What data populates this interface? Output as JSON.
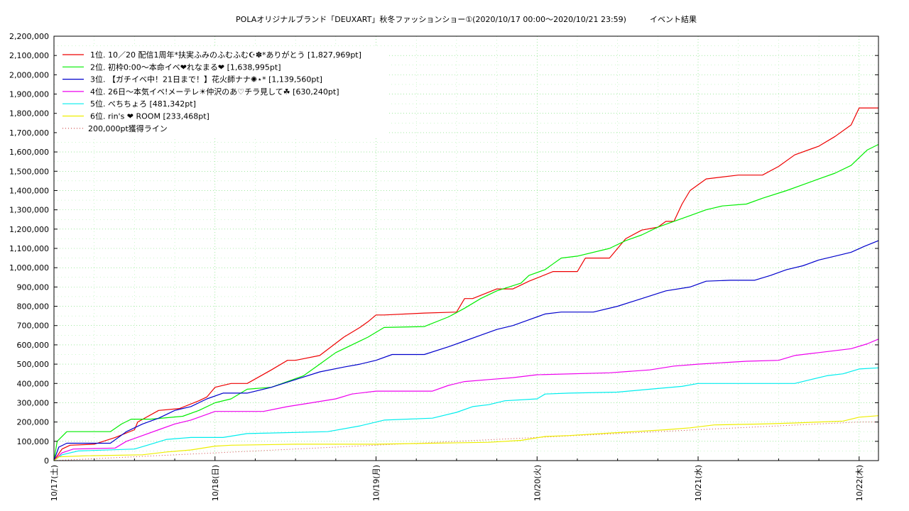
{
  "chart_data": {
    "type": "line",
    "title": "POLAオリジナルブランド「DEUXART」秋冬ファッションショー①(2020/10/17 00:00～2020/10/21 23:59)",
    "title_suffix": "イベント結果",
    "ylim": [
      0,
      2200000
    ],
    "xlim": [
      0,
      5.12
    ],
    "y_ticks": [
      0,
      100000,
      200000,
      300000,
      400000,
      500000,
      600000,
      700000,
      800000,
      900000,
      1000000,
      1100000,
      1200000,
      1300000,
      1400000,
      1500000,
      1600000,
      1700000,
      1800000,
      1900000,
      2000000,
      2100000,
      2200000
    ],
    "y_tick_labels": [
      "0",
      "100,000",
      "200,000",
      "300,000",
      "400,000",
      "500,000",
      "600,000",
      "700,000",
      "800,000",
      "900,000",
      "1,000,000",
      "1,100,000",
      "1,200,000",
      "1,300,000",
      "1,400,000",
      "1,500,000",
      "1,600,000",
      "1,700,000",
      "1,800,000",
      "1,900,000",
      "2,000,000",
      "2,100,000",
      "2,200,000"
    ],
    "x_ticks": [
      0,
      1,
      2,
      3,
      4,
      5
    ],
    "x_tick_labels": [
      "10/17(土)",
      "10/18(日)",
      "10/19(月)",
      "10/20(火)",
      "10/21(水)",
      "10/22(木)"
    ],
    "grid": true,
    "legend_position": "top-left",
    "series": [
      {
        "name": "1位. 10／20 配信1周年*扶実ふみのふむふむ☪✽*ありがとう [1,827,969pt]",
        "color": "#ee0000",
        "x": [
          0,
          0.05,
          0.1,
          0.25,
          0.38,
          0.5,
          0.52,
          0.65,
          0.78,
          0.9,
          0.95,
          1.0,
          1.1,
          1.2,
          1.35,
          1.45,
          1.5,
          1.65,
          1.8,
          1.9,
          1.95,
          2.0,
          2.05,
          2.3,
          2.5,
          2.55,
          2.6,
          2.75,
          2.85,
          2.95,
          3.1,
          3.2,
          3.25,
          3.3,
          3.45,
          3.55,
          3.65,
          3.75,
          3.8,
          3.85,
          3.9,
          3.95,
          4.05,
          4.25,
          4.4,
          4.5,
          4.6,
          4.75,
          4.85,
          4.95,
          5.0,
          5.12
        ],
        "y": [
          0,
          60000,
          80000,
          85000,
          120000,
          160000,
          200000,
          260000,
          270000,
          310000,
          330000,
          380000,
          400000,
          400000,
          470000,
          520000,
          520000,
          545000,
          640000,
          690000,
          720000,
          755000,
          755000,
          765000,
          770000,
          840000,
          840000,
          890000,
          890000,
          930000,
          980000,
          980000,
          980000,
          1050000,
          1050000,
          1150000,
          1195000,
          1210000,
          1240000,
          1240000,
          1330000,
          1400000,
          1460000,
          1480000,
          1480000,
          1525000,
          1585000,
          1630000,
          1680000,
          1740000,
          1828000,
          1828000
        ]
      },
      {
        "name": "2位. 初枠0:00～本命イベ❤れなまる❤ [1,638,995pt]",
        "color": "#00ee00",
        "x": [
          0,
          0.02,
          0.08,
          0.35,
          0.42,
          0.48,
          0.6,
          0.8,
          0.9,
          1.0,
          1.1,
          1.2,
          1.35,
          1.55,
          1.65,
          1.75,
          1.85,
          1.95,
          2.05,
          2.3,
          2.45,
          2.55,
          2.65,
          2.75,
          2.9,
          2.95,
          3.05,
          3.1,
          3.15,
          3.25,
          3.45,
          3.55,
          3.65,
          3.75,
          3.85,
          3.95,
          4.05,
          4.15,
          4.3,
          4.4,
          4.55,
          4.65,
          4.75,
          4.85,
          4.95,
          5.0,
          5.05,
          5.12
        ],
        "y": [
          0,
          100000,
          150000,
          150000,
          190000,
          215000,
          215000,
          230000,
          260000,
          300000,
          320000,
          370000,
          380000,
          440000,
          500000,
          560000,
          600000,
          640000,
          690000,
          695000,
          745000,
          790000,
          840000,
          880000,
          920000,
          960000,
          990000,
          1020000,
          1050000,
          1060000,
          1100000,
          1140000,
          1170000,
          1210000,
          1240000,
          1270000,
          1300000,
          1320000,
          1330000,
          1360000,
          1400000,
          1430000,
          1460000,
          1490000,
          1530000,
          1570000,
          1610000,
          1639000
        ]
      },
      {
        "name": "3位. 【ガチイベ中！21日まで！】花火師ナナ✺⋆* [1,139,560pt]",
        "color": "#0000cc",
        "x": [
          0,
          0.03,
          0.08,
          0.35,
          0.45,
          0.55,
          0.65,
          0.75,
          0.85,
          0.95,
          1.05,
          1.2,
          1.35,
          1.5,
          1.65,
          1.8,
          1.9,
          2.0,
          2.1,
          2.3,
          2.45,
          2.55,
          2.65,
          2.75,
          2.85,
          2.95,
          3.05,
          3.15,
          3.35,
          3.5,
          3.65,
          3.8,
          3.95,
          4.05,
          4.2,
          4.35,
          4.45,
          4.55,
          4.65,
          4.75,
          4.85,
          4.95,
          5.03,
          5.12
        ],
        "y": [
          0,
          70000,
          90000,
          90000,
          150000,
          190000,
          220000,
          260000,
          280000,
          320000,
          350000,
          350000,
          380000,
          420000,
          460000,
          485000,
          500000,
          520000,
          550000,
          550000,
          590000,
          620000,
          650000,
          680000,
          700000,
          730000,
          760000,
          770000,
          770000,
          800000,
          840000,
          880000,
          900000,
          930000,
          935000,
          935000,
          960000,
          990000,
          1010000,
          1040000,
          1060000,
          1080000,
          1110000,
          1140000
        ]
      },
      {
        "name": "4位. 26日～本気イベ!メーテレ☀仲沢のあ♡チラ見して☘ [630,240pt]",
        "color": "#ee00ee",
        "x": [
          0,
          0.05,
          0.12,
          0.38,
          0.45,
          0.55,
          0.65,
          0.75,
          0.85,
          0.95,
          1.0,
          1.3,
          1.45,
          1.6,
          1.75,
          1.85,
          2.0,
          2.35,
          2.45,
          2.55,
          2.7,
          2.85,
          3.0,
          3.45,
          3.7,
          3.85,
          4.0,
          4.3,
          4.5,
          4.6,
          4.75,
          4.95,
          5.05,
          5.12
        ],
        "y": [
          0,
          40000,
          60000,
          65000,
          100000,
          130000,
          160000,
          190000,
          210000,
          240000,
          255000,
          255000,
          280000,
          300000,
          320000,
          345000,
          360000,
          360000,
          390000,
          410000,
          420000,
          430000,
          445000,
          455000,
          470000,
          490000,
          500000,
          515000,
          520000,
          545000,
          560000,
          580000,
          605000,
          630000
        ]
      },
      {
        "name": "5位. べちちょろ [481,342pt]",
        "color": "#00eeee",
        "x": [
          0,
          0.05,
          0.15,
          0.5,
          0.6,
          0.7,
          0.85,
          1.05,
          1.2,
          1.7,
          1.9,
          2.05,
          2.35,
          2.5,
          2.6,
          2.7,
          2.8,
          3.0,
          3.05,
          3.2,
          3.5,
          3.7,
          3.9,
          4.0,
          4.6,
          4.7,
          4.8,
          4.9,
          5.0,
          5.12
        ],
        "y": [
          0,
          30000,
          50000,
          60000,
          85000,
          110000,
          120000,
          120000,
          140000,
          150000,
          180000,
          210000,
          220000,
          250000,
          280000,
          290000,
          310000,
          320000,
          345000,
          350000,
          355000,
          370000,
          385000,
          400000,
          400000,
          420000,
          440000,
          450000,
          475000,
          481000
        ]
      },
      {
        "name": "6位. rin's ❤ ROOM [233,468pt]",
        "color": "#eeee00",
        "x": [
          0,
          0.03,
          0.2,
          0.55,
          0.7,
          0.85,
          1.0,
          1.1,
          1.5,
          2.0,
          2.35,
          2.7,
          2.9,
          3.05,
          3.2,
          3.4,
          3.6,
          3.8,
          3.95,
          4.1,
          4.4,
          4.6,
          4.75,
          4.9,
          5.0,
          5.12
        ],
        "y": [
          0,
          20000,
          25000,
          30000,
          45000,
          55000,
          75000,
          80000,
          85000,
          85000,
          90000,
          95000,
          105000,
          125000,
          130000,
          140000,
          150000,
          160000,
          170000,
          185000,
          190000,
          195000,
          200000,
          205000,
          225000,
          233000
        ]
      },
      {
        "name": "200,000pt獲得ライン",
        "color": "#cc4444",
        "dotted": true,
        "x": [
          0,
          5.0,
          5.12
        ],
        "y": [
          0,
          200000,
          200000
        ]
      }
    ]
  }
}
